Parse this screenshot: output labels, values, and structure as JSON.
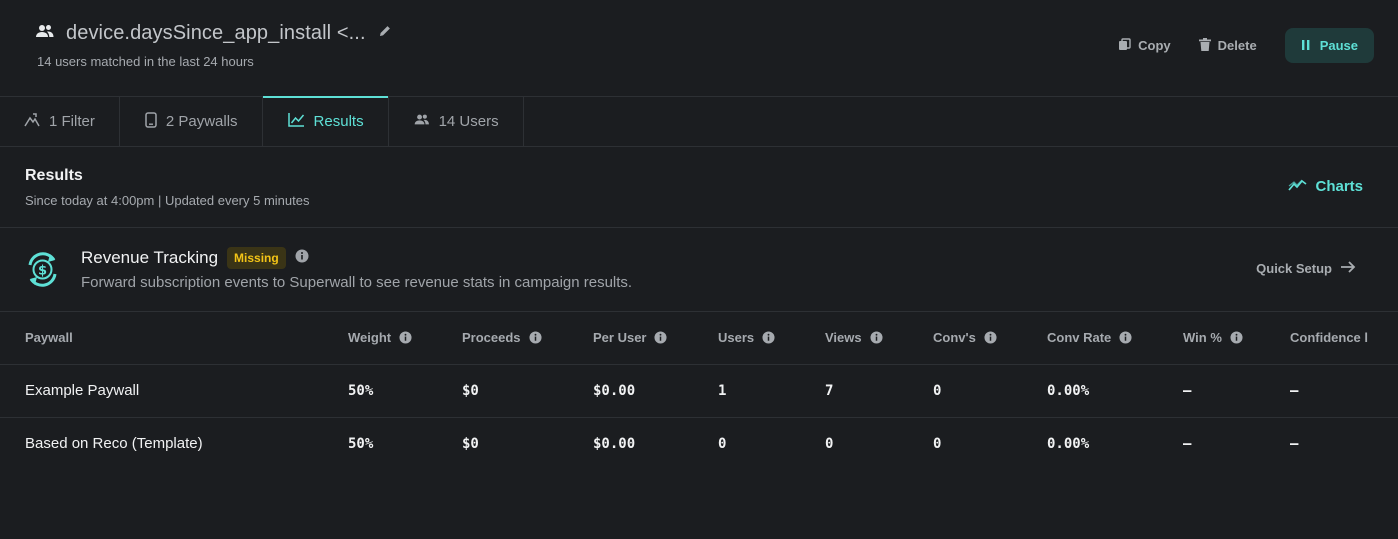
{
  "header": {
    "title": "device.daysSince_app_install <...",
    "subtitle": "14 users matched in the last 24 hours",
    "copy_label": "Copy",
    "delete_label": "Delete",
    "pause_label": "Pause"
  },
  "tabs": [
    {
      "label": "1 Filter",
      "icon": "filter-icon"
    },
    {
      "label": "2 Paywalls",
      "icon": "phone-icon"
    },
    {
      "label": "Results",
      "icon": "line-chart-icon",
      "active": true
    },
    {
      "label": "14 Users",
      "icon": "users-icon"
    }
  ],
  "results": {
    "title": "Results",
    "subtitle": "Since today at 4:00pm | Updated every 5 minutes",
    "charts_label": "Charts"
  },
  "revenue": {
    "title": "Revenue Tracking",
    "badge": "Missing",
    "description": "Forward subscription events to Superwall to see revenue stats in campaign results.",
    "quick_setup_label": "Quick Setup"
  },
  "table": {
    "columns": [
      "Paywall",
      "Weight",
      "Proceeds",
      "Per User",
      "Users",
      "Views",
      "Conv's",
      "Conv Rate",
      "Win %",
      "Confidence l"
    ],
    "rows": [
      [
        "Example Paywall",
        "50%",
        "$0",
        "$0.00",
        "1",
        "7",
        "0",
        "0.00%",
        "–",
        "–"
      ],
      [
        "Based on Reco (Template)",
        "50%",
        "$0",
        "$0.00",
        "0",
        "0",
        "0",
        "0.00%",
        "–",
        "–"
      ]
    ]
  },
  "colors": {
    "accent": "#5ee0d6",
    "background": "#1b1d20",
    "badge": "#f3c417"
  }
}
